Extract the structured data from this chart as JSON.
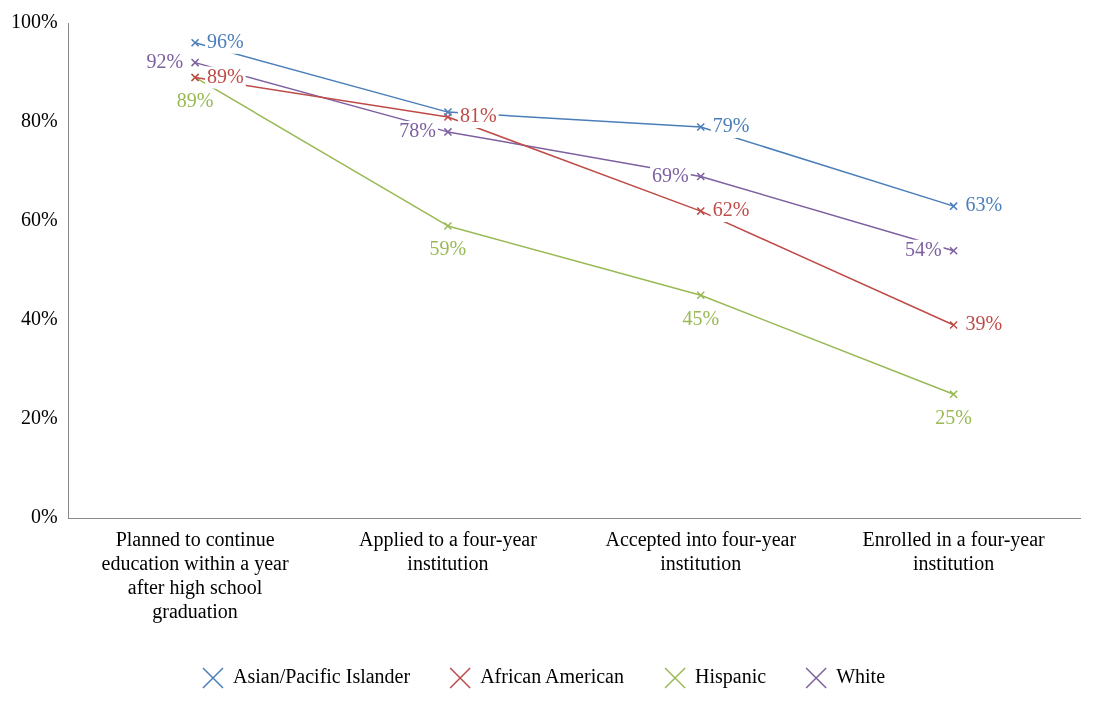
{
  "chart_data": {
    "type": "line",
    "categories": [
      "Planned to continue education within a year after high school graduation",
      "Applied to a four-year institution",
      "Accepted into four-year institution",
      "Enrolled in a four-year institution"
    ],
    "series": [
      {
        "name": "Asian/Pacific Islander",
        "color": "#4a7ebb",
        "values": [
          96,
          82,
          79,
          63
        ],
        "value_labels": [
          "96%",
          null,
          "79%",
          "63%"
        ]
      },
      {
        "name": "African American",
        "color": "#be4b48",
        "values": [
          89,
          81,
          62,
          39
        ],
        "value_labels": [
          "89%",
          "81%",
          "62%",
          "39%"
        ]
      },
      {
        "name": "Hispanic",
        "color": "#98b954",
        "values": [
          89,
          59,
          45,
          25
        ],
        "value_labels": [
          "89%",
          "59%",
          "45%",
          "25%"
        ]
      },
      {
        "name": "White",
        "color": "#7d60a0",
        "values": [
          92,
          78,
          69,
          54
        ],
        "value_labels": [
          "92%",
          "78%",
          "69%",
          "54%"
        ]
      }
    ],
    "ylim": [
      0,
      100
    ],
    "yticks": [
      {
        "value": 0,
        "label": "0%"
      },
      {
        "value": 20,
        "label": "20%"
      },
      {
        "value": 40,
        "label": "40%"
      },
      {
        "value": 60,
        "label": "60%"
      },
      {
        "value": 80,
        "label": "80%"
      },
      {
        "value": 100,
        "label": "100%"
      }
    ],
    "grid": false,
    "legend": "bottom",
    "marker": "cross",
    "line_style": "solid"
  }
}
